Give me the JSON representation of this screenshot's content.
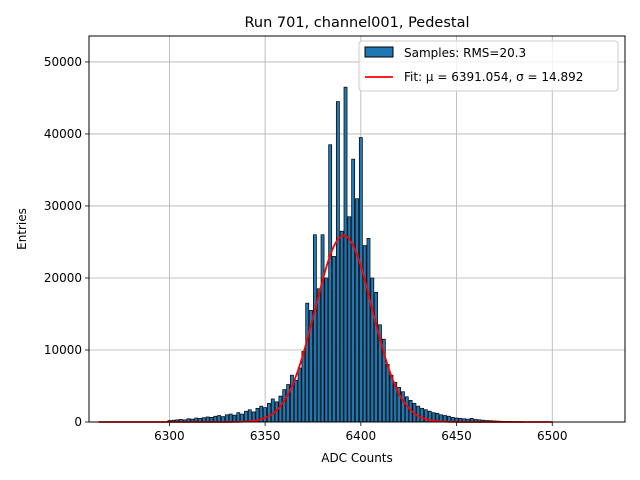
{
  "chart_data": {
    "type": "bar",
    "title": "Run 701, channel001, Pedestal",
    "xlabel": "ADC Counts",
    "ylabel": "Entries",
    "xlim": [
      6258,
      6538
    ],
    "ylim": [
      0,
      53600
    ],
    "xticks": [
      6300,
      6350,
      6400,
      6450,
      6500
    ],
    "yticks": [
      0,
      10000,
      20000,
      30000,
      40000,
      50000
    ],
    "grid": true,
    "legend_position": "upper right",
    "series": [
      {
        "name": "Samples: RMS=20.3",
        "kind": "histogram",
        "color": "#1f77b4",
        "edgecolor": "#000000"
      },
      {
        "name": "Fit: μ = 6391.054, σ = 14.892",
        "kind": "line",
        "color": "#ff0000"
      }
    ],
    "fit": {
      "mu": 6391.054,
      "sigma": 14.892,
      "amplitude": 25900,
      "x_range": [
        6263,
        6500
      ]
    },
    "bins": {
      "x": [
        6300,
        6302,
        6304,
        6306,
        6308,
        6310,
        6312,
        6314,
        6316,
        6318,
        6320,
        6322,
        6324,
        6326,
        6328,
        6330,
        6332,
        6334,
        6336,
        6338,
        6340,
        6342,
        6344,
        6346,
        6348,
        6350,
        6352,
        6354,
        6356,
        6358,
        6360,
        6362,
        6364,
        6366,
        6368,
        6370,
        6372,
        6374,
        6376,
        6378,
        6380,
        6382,
        6384,
        6386,
        6388,
        6390,
        6392,
        6394,
        6396,
        6398,
        6400,
        6402,
        6404,
        6406,
        6408,
        6410,
        6412,
        6414,
        6416,
        6418,
        6420,
        6422,
        6424,
        6426,
        6428,
        6430,
        6432,
        6434,
        6436,
        6438,
        6440,
        6442,
        6444,
        6446,
        6448,
        6450,
        6452,
        6454,
        6456,
        6458,
        6460,
        6462,
        6464,
        6466,
        6468,
        6470,
        6472,
        6474,
        6476,
        6478,
        6480,
        6482,
        6484
      ],
      "y": [
        200,
        250,
        300,
        350,
        300,
        450,
        400,
        550,
        500,
        600,
        700,
        650,
        800,
        900,
        750,
        1000,
        1100,
        950,
        1300,
        1100,
        1500,
        1700,
        1400,
        1900,
        2200,
        2000,
        2600,
        3200,
        2800,
        3600,
        4500,
        5200,
        6500,
        5800,
        7500,
        9800,
        16500,
        15500,
        26000,
        18500,
        26000,
        20000,
        38500,
        23000,
        44500,
        26500,
        46500,
        28500,
        36500,
        31000,
        39500,
        24500,
        25500,
        20000,
        18000,
        13500,
        11500,
        8000,
        6500,
        5500,
        4800,
        4200,
        3500,
        3000,
        2600,
        2200,
        1900,
        1700,
        1500,
        1300,
        1200,
        1000,
        900,
        800,
        650,
        550,
        500,
        450,
        400,
        500,
        350,
        300,
        250,
        200,
        180,
        150,
        120,
        100,
        90,
        80,
        70,
        60,
        50
      ]
    }
  }
}
